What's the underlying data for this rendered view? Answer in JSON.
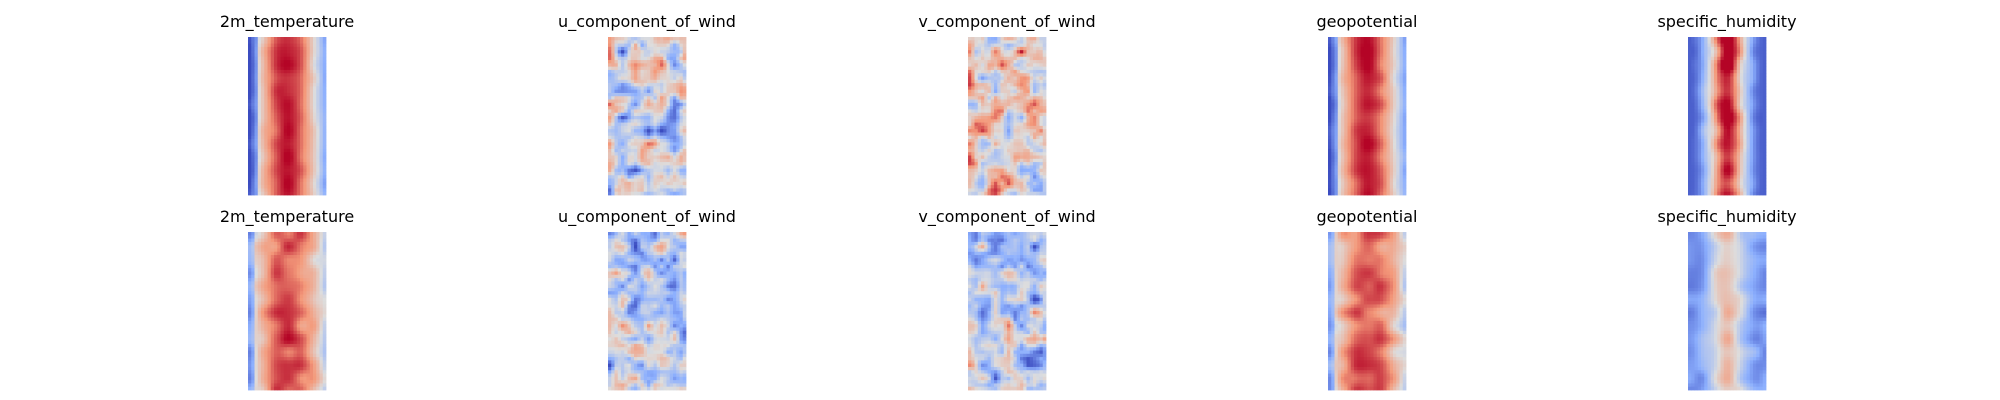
{
  "chart_data": {
    "type": "heatmap",
    "colormap": "coolwarm",
    "colormap_stops": [
      "#3b4cc0",
      "#8db0fe",
      "#dddddd",
      "#f49a7b",
      "#b40426"
    ],
    "axes_visible": false,
    "grid": false,
    "legend": "none",
    "rows": [
      {
        "panels": [
          {
            "title": "2m_temperature",
            "pattern": "warm-band"
          },
          {
            "title": "u_component_of_wind",
            "pattern": "mixed"
          },
          {
            "title": "v_component_of_wind",
            "pattern": "mixed-warm"
          },
          {
            "title": "geopotential",
            "pattern": "warm-band"
          },
          {
            "title": "specific_humidity",
            "pattern": "humid-core"
          }
        ]
      },
      {
        "panels": [
          {
            "title": "2m_temperature",
            "pattern": "warm-band-soft"
          },
          {
            "title": "u_component_of_wind",
            "pattern": "mixed-cool"
          },
          {
            "title": "v_component_of_wind",
            "pattern": "mixed-cool"
          },
          {
            "title": "geopotential",
            "pattern": "warm-band-soft"
          },
          {
            "title": "specific_humidity",
            "pattern": "humid-core-soft"
          }
        ]
      }
    ]
  }
}
